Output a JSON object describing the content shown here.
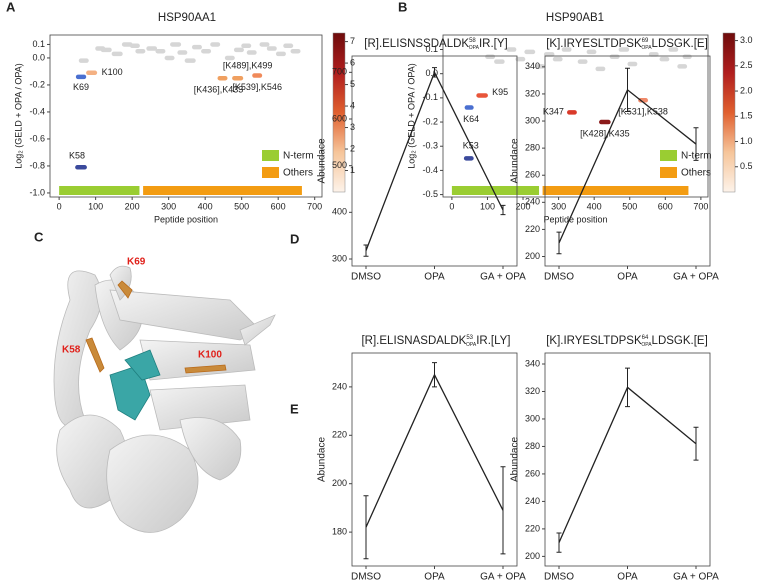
{
  "panel_labels": [
    "A",
    "B",
    "C",
    "D",
    "E"
  ],
  "structure": {
    "labels": [
      "K69",
      "K58",
      "K100"
    ]
  },
  "chart_data": [
    {
      "type": "scatter",
      "title": "HSP90AA1",
      "x_label": "Peptide position",
      "y_label": "Log₂ (GELD + OPA / OPA)",
      "xlim": [
        -25,
        720
      ],
      "xticks": [
        0,
        100,
        200,
        300,
        400,
        500,
        600,
        700
      ],
      "ylim": [
        -1.03,
        0.17
      ],
      "yticks": [
        0.1,
        {
          "value": 0,
          "label": "0.0"
        },
        -0.2,
        -0.4,
        -0.6,
        -0.8,
        {
          "value": -1,
          "label": "-1.0"
        }
      ],
      "colorbar": {
        "clim": [
          0,
          7.4
        ],
        "ticks": [
          1,
          2,
          3,
          4,
          5,
          6,
          7
        ],
        "colors": [
          "#fdf3ea",
          "#f6c59a",
          "#e0602f",
          "#b01e1e",
          "#6e0c0c"
        ]
      },
      "domains": {
        "names": [
          "N-term",
          "Others"
        ],
        "colors": [
          "#9acd32",
          "#f39c12"
        ],
        "start": [
          0,
          230
        ],
        "end": [
          220,
          665
        ]
      },
      "peptides": {
        "x": [
          52,
          80,
          50,
          440,
          480,
          535,
          105,
          120,
          150,
          178,
          200,
          215,
          245,
          270,
          295,
          310,
          330,
          350,
          370,
          395,
          420,
          460,
          485,
          505,
          520,
          555,
          575,
          600,
          620,
          640,
          60
        ],
        "x_end": [
          68,
          98,
          70,
          455,
          498,
          550,
          120,
          138,
          168,
          195,
          215,
          230,
          262,
          285,
          310,
          328,
          345,
          368,
          385,
          410,
          435,
          475,
          500,
          520,
          535,
          570,
          590,
          615,
          635,
          655,
          75
        ],
        "y": [
          -0.14,
          -0.11,
          -0.81,
          -0.15,
          -0.15,
          -0.13,
          0.07,
          0.06,
          0.03,
          0.1,
          0.09,
          0.05,
          0.07,
          0.05,
          0.0,
          0.1,
          0.04,
          -0.02,
          0.08,
          0.05,
          0.1,
          0.0,
          0.06,
          0.09,
          0.04,
          0.1,
          0.07,
          0.03,
          0.09,
          0.05,
          -0.02
        ],
        "labels": [
          "K69",
          "K100",
          "K58",
          "[K436],K433",
          "[K489],K499",
          "[K539],K546",
          null,
          null,
          null,
          null,
          null,
          null,
          null,
          null,
          null,
          null,
          null,
          null,
          null,
          null,
          null,
          null,
          null,
          null,
          null,
          null,
          null,
          null,
          null,
          null,
          null
        ],
        "colors": [
          "#4a6fd0",
          "#f4b183",
          "#3b4a9c",
          "#f0a060",
          "#f0a060",
          "#f08a5a",
          "#d6d6d6",
          "#d6d6d6",
          "#d6d6d6",
          "#d6d6d6",
          "#d6d6d6",
          "#d6d6d6",
          "#d6d6d6",
          "#d6d6d6",
          "#d6d6d6",
          "#d6d6d6",
          "#d6d6d6",
          "#d6d6d6",
          "#d6d6d6",
          "#d6d6d6",
          "#d6d6d6",
          "#d6d6d6",
          "#d6d6d6",
          "#d6d6d6",
          "#d6d6d6",
          "#d6d6d6",
          "#d6d6d6",
          "#d6d6d6",
          "#d6d6d6",
          "#d6d6d6",
          "#d6d6d6"
        ]
      }
    },
    {
      "type": "scatter",
      "title": "HSP90AB1",
      "x_label": "Peptide position",
      "y_label": "Log₂ (GELD + OPA / OPA)",
      "xlim": [
        -25,
        720
      ],
      "xticks": [
        0,
        100,
        200,
        300,
        400,
        500,
        600,
        700
      ],
      "ylim": [
        -0.51,
        0.16
      ],
      "yticks": [
        0.1,
        {
          "value": 0,
          "label": "0.0"
        },
        -0.1,
        -0.2,
        -0.3,
        -0.4,
        -0.5
      ],
      "colorbar": {
        "clim": [
          0,
          3.15
        ],
        "ticks": [
          0.5,
          {
            "value": 1,
            "label": "1.0"
          },
          1.5,
          {
            "value": 2,
            "label": "2.0"
          },
          2.5,
          {
            "value": 3,
            "label": "3.0"
          }
        ],
        "colors": [
          "#fdf3ea",
          "#f6c59a",
          "#e0602f",
          "#b01e1e",
          "#6e0c0c"
        ]
      },
      "domains": {
        "names": [
          "N-term",
          "Others"
        ],
        "colors": [
          "#9acd32",
          "#f39c12"
        ],
        "start": [
          0,
          255
        ],
        "end": [
          245,
          665
        ]
      },
      "peptides": {
        "x": [
          42,
          75,
          330,
          420,
          530,
          40,
          100,
          125,
          160,
          185,
          210,
          240,
          265,
          290,
          315,
          360,
          385,
          410,
          450,
          475,
          500,
          560,
          590,
          615,
          640,
          655
        ],
        "x_end": [
          55,
          95,
          345,
          440,
          545,
          55,
          115,
          142,
          175,
          200,
          228,
          255,
          282,
          305,
          330,
          375,
          400,
          425,
          465,
          492,
          515,
          575,
          605,
          630,
          655,
          668
        ],
        "y": [
          -0.14,
          -0.09,
          -0.16,
          -0.2,
          -0.11,
          -0.35,
          0.07,
          0.05,
          0.1,
          0.06,
          0.09,
          0.03,
          0.08,
          0.06,
          0.1,
          0.05,
          0.09,
          0.02,
          0.07,
          0.1,
          0.04,
          0.08,
          0.06,
          0.1,
          0.03,
          0.07
        ],
        "labels": [
          "K64",
          "K95",
          "K347",
          "[K428],K435",
          "[K531],K538",
          "K53",
          null,
          null,
          null,
          null,
          null,
          null,
          null,
          null,
          null,
          null,
          null,
          null,
          null,
          null,
          null,
          null,
          null,
          null,
          null,
          null
        ],
        "colors": [
          "#4a6fd0",
          "#e8553a",
          "#d93a2a",
          "#8b1a1a",
          "#f08a6a",
          "#3b4a9c",
          "#d6d6d6",
          "#d6d6d6",
          "#d6d6d6",
          "#d6d6d6",
          "#d6d6d6",
          "#d6d6d6",
          "#d6d6d6",
          "#d6d6d6",
          "#d6d6d6",
          "#d6d6d6",
          "#d6d6d6",
          "#d6d6d6",
          "#d6d6d6",
          "#d6d6d6",
          "#d6d6d6",
          "#d6d6d6",
          "#d6d6d6",
          "#d6d6d6",
          "#d6d6d6",
          "#d6d6d6"
        ]
      }
    },
    {
      "type": "line",
      "title": {
        "pre": "[R].ELISNSSDALDK",
        "sup": "58",
        "sub": "OPA",
        "post": "IR.[Y]"
      },
      "y_label": "Abundace",
      "categories": [
        "DMSO",
        "OPA",
        "GA + OPA"
      ],
      "values": [
        318,
        700,
        405
      ],
      "errors": [
        12,
        10,
        10
      ],
      "ylim": [
        285,
        735
      ],
      "yticks": [
        300,
        400,
        500,
        600,
        700
      ],
      "color": "#222222"
    },
    {
      "type": "line",
      "title": {
        "pre": "[K].IRYESLTDPSK",
        "sup": "69",
        "sub": "OPA",
        "post": "LDSGK.[E]"
      },
      "y_label": "Abundace",
      "categories": [
        "DMSO",
        "OPA",
        "GA + OPA"
      ],
      "values": [
        210,
        323,
        283
      ],
      "errors": [
        8,
        16,
        12
      ],
      "ylim": [
        193,
        348
      ],
      "yticks": [
        200,
        220,
        240,
        260,
        280,
        300,
        320,
        340
      ],
      "color": "#222222"
    },
    {
      "type": "line",
      "title": {
        "pre": "[R].ELISNASDALDK",
        "sup": "53",
        "sub": "OPA",
        "post": "IR.[LY]"
      },
      "y_label": "Abundace",
      "categories": [
        "DMSO",
        "OPA",
        "GA + OPA"
      ],
      "values": [
        182,
        245,
        189
      ],
      "errors": [
        13,
        5,
        18
      ],
      "ylim": [
        166,
        254
      ],
      "yticks": [
        180,
        200,
        220,
        240
      ],
      "color": "#222222"
    },
    {
      "type": "line",
      "title": {
        "pre": "[K].IRYESLTDPSK",
        "sup": "64",
        "sub": "OPA",
        "post": "LDSGK.[E]"
      },
      "y_label": "Abundace",
      "categories": [
        "DMSO",
        "OPA",
        "GA + OPA"
      ],
      "values": [
        210,
        323,
        282
      ],
      "errors": [
        7,
        14,
        12
      ],
      "ylim": [
        193,
        348
      ],
      "yticks": [
        200,
        220,
        240,
        260,
        280,
        300,
        320,
        340
      ],
      "color": "#222222"
    }
  ]
}
